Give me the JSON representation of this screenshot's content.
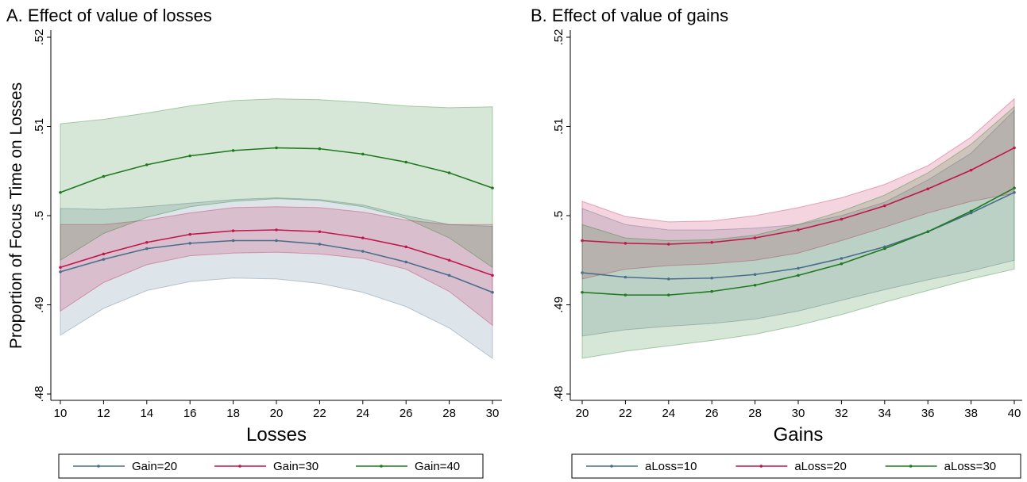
{
  "chart_data": [
    {
      "type": "line",
      "title": "A. Effect of value of losses",
      "y_label": "Proportion of Focus Time on Losses",
      "x_label": "Losses",
      "x": [
        10,
        12,
        14,
        16,
        18,
        20,
        22,
        24,
        26,
        28,
        30
      ],
      "xlim": [
        10,
        30
      ],
      "xticks": [
        10,
        12,
        14,
        16,
        18,
        20,
        22,
        24,
        26,
        28,
        30
      ],
      "ylim": [
        0.48,
        0.52
      ],
      "yticks": [
        {
          "value": 0.48,
          "label": ".48"
        },
        {
          "value": 0.49,
          "label": ".49"
        },
        {
          "value": 0.5,
          "label": ".5"
        },
        {
          "value": 0.51,
          "label": ".51"
        },
        {
          "value": 0.52,
          "label": ".52"
        }
      ],
      "legend": "bottom",
      "series": [
        {
          "name": "Gain=20",
          "color": "#4a6d8c",
          "values": [
            0.4937,
            0.4951,
            0.4963,
            0.4969,
            0.4972,
            0.4972,
            0.4968,
            0.496,
            0.4948,
            0.4933,
            0.4914
          ],
          "lower": [
            0.4866,
            0.4896,
            0.4916,
            0.4926,
            0.493,
            0.4929,
            0.4924,
            0.4914,
            0.4898,
            0.4874,
            0.484
          ],
          "upper": [
            0.5008,
            0.5007,
            0.501,
            0.5014,
            0.5018,
            0.502,
            0.5018,
            0.5012,
            0.5,
            0.499,
            0.4988
          ]
        },
        {
          "name": "Gain=30",
          "color": "#c0174b",
          "values": [
            0.4942,
            0.4957,
            0.497,
            0.4979,
            0.4983,
            0.4984,
            0.4982,
            0.4975,
            0.4965,
            0.495,
            0.4933
          ],
          "lower": [
            0.4893,
            0.4925,
            0.4945,
            0.4955,
            0.4958,
            0.4959,
            0.4957,
            0.4952,
            0.494,
            0.4915,
            0.4877
          ],
          "upper": [
            0.499,
            0.499,
            0.4995,
            0.5003,
            0.5009,
            0.501,
            0.5009,
            0.5004,
            0.4995,
            0.499,
            0.499
          ]
        },
        {
          "name": "Gain=40",
          "color": "#1f7a1f",
          "values": [
            0.5026,
            0.5044,
            0.5057,
            0.5067,
            0.5073,
            0.5076,
            0.5075,
            0.5069,
            0.506,
            0.5048,
            0.5031
          ],
          "lower": [
            0.495,
            0.498,
            0.4998,
            0.501,
            0.5016,
            0.5019,
            0.5017,
            0.501,
            0.4997,
            0.4975,
            0.4942
          ],
          "upper": [
            0.5103,
            0.5108,
            0.5115,
            0.5123,
            0.5129,
            0.5131,
            0.513,
            0.5127,
            0.5123,
            0.5121,
            0.5122
          ]
        }
      ]
    },
    {
      "type": "line",
      "title": "B. Effect of value of gains",
      "x_label": "Gains",
      "x": [
        20,
        22,
        24,
        26,
        28,
        30,
        32,
        34,
        36,
        38,
        40
      ],
      "xlim": [
        20,
        40
      ],
      "xticks": [
        20,
        22,
        24,
        26,
        28,
        30,
        32,
        34,
        36,
        38,
        40
      ],
      "ylim": [
        0.48,
        0.52
      ],
      "yticks": [
        {
          "value": 0.48,
          "label": ".48"
        },
        {
          "value": 0.49,
          "label": ".49"
        },
        {
          "value": 0.5,
          "label": ".5"
        },
        {
          "value": 0.51,
          "label": ".51"
        },
        {
          "value": 0.52,
          "label": ".52"
        }
      ],
      "legend": "bottom",
      "series": [
        {
          "name": "aLoss=10",
          "color": "#4a6d8c",
          "values": [
            0.4936,
            0.4931,
            0.4929,
            0.493,
            0.4934,
            0.4941,
            0.4952,
            0.4965,
            0.4982,
            0.5003,
            0.5026
          ],
          "lower": [
            0.4865,
            0.4872,
            0.4876,
            0.4879,
            0.4884,
            0.4893,
            0.4905,
            0.4917,
            0.4928,
            0.4938,
            0.495
          ],
          "upper": [
            0.5008,
            0.499,
            0.4984,
            0.4984,
            0.4986,
            0.499,
            0.5,
            0.5015,
            0.504,
            0.507,
            0.5118
          ]
        },
        {
          "name": "aLoss=20",
          "color": "#c0174b",
          "values": [
            0.4972,
            0.4969,
            0.4968,
            0.497,
            0.4975,
            0.4984,
            0.4996,
            0.5011,
            0.503,
            0.5051,
            0.5076
          ],
          "lower": [
            0.4929,
            0.494,
            0.4944,
            0.4946,
            0.495,
            0.4958,
            0.4972,
            0.4987,
            0.5003,
            0.5016,
            0.5025
          ],
          "upper": [
            0.5016,
            0.4999,
            0.4993,
            0.4994,
            0.5,
            0.5009,
            0.502,
            0.5035,
            0.5056,
            0.5088,
            0.5131
          ]
        },
        {
          "name": "aLoss=30",
          "color": "#1f7a1f",
          "values": [
            0.4914,
            0.4911,
            0.4911,
            0.4915,
            0.4922,
            0.4933,
            0.4946,
            0.4963,
            0.4982,
            0.5005,
            0.5031
          ],
          "lower": [
            0.484,
            0.4848,
            0.4854,
            0.486,
            0.4867,
            0.4877,
            0.4889,
            0.4903,
            0.4916,
            0.4929,
            0.494
          ],
          "upper": [
            0.499,
            0.4975,
            0.4972,
            0.4973,
            0.4978,
            0.499,
            0.5005,
            0.5023,
            0.5048,
            0.508,
            0.5122
          ]
        }
      ]
    }
  ]
}
